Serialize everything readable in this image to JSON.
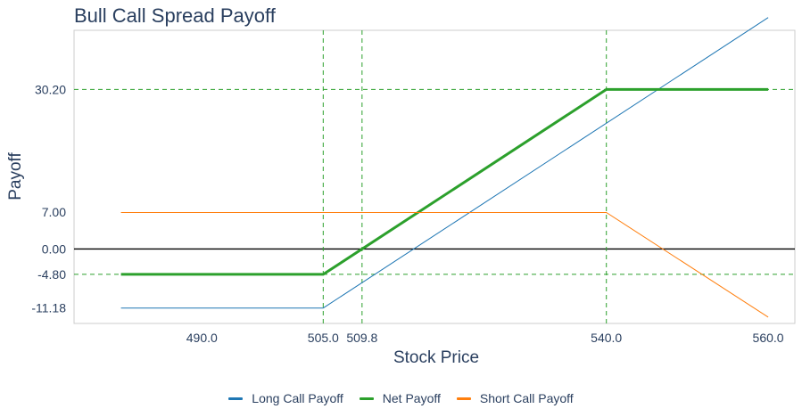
{
  "chart_data": {
    "type": "line",
    "title": "Bull Call Spread Payoff",
    "xlabel": "Stock Price",
    "ylabel": "Payoff",
    "xlim": [
      474.2,
      563.3
    ],
    "ylim": [
      -14.1,
      41.4
    ],
    "x_ticks": [
      490.0,
      505.0,
      509.8,
      540.0,
      560.0
    ],
    "x_tick_labels": [
      "490.0",
      "505.0",
      "509.8",
      "540.0",
      "560.0"
    ],
    "y_ticks": [
      30.2,
      7.0,
      0.0,
      -4.8,
      -11.18
    ],
    "y_tick_labels": [
      "30.20",
      "7.00",
      "0.00",
      "-4.80",
      "-11.18"
    ],
    "reference_lines": {
      "vertical_dashed": [
        505.0,
        509.8,
        540.0
      ],
      "horizontal_dashed": [
        30.2,
        -4.8
      ],
      "zero_line": 0.0
    },
    "series": [
      {
        "name": "Long Call Payoff",
        "color": "#1f77b4",
        "width": 1,
        "x": [
          480.0,
          505.0,
          560.0
        ],
        "y": [
          -11.18,
          -11.18,
          43.82
        ]
      },
      {
        "name": "Net Payoff",
        "color": "#2ca02c",
        "width": 3,
        "x": [
          480.0,
          505.0,
          540.0,
          560.0
        ],
        "y": [
          -4.8,
          -4.8,
          30.2,
          30.2
        ]
      },
      {
        "name": "Short Call Payoff",
        "color": "#ff7f0e",
        "width": 1,
        "x": [
          480.0,
          540.0,
          560.0
        ],
        "y": [
          6.9,
          6.9,
          -12.9
        ]
      }
    ],
    "legend_position": "bottom-center",
    "grid": false,
    "reference_color": "#2ca02c",
    "zero_line_color": "#000000"
  }
}
